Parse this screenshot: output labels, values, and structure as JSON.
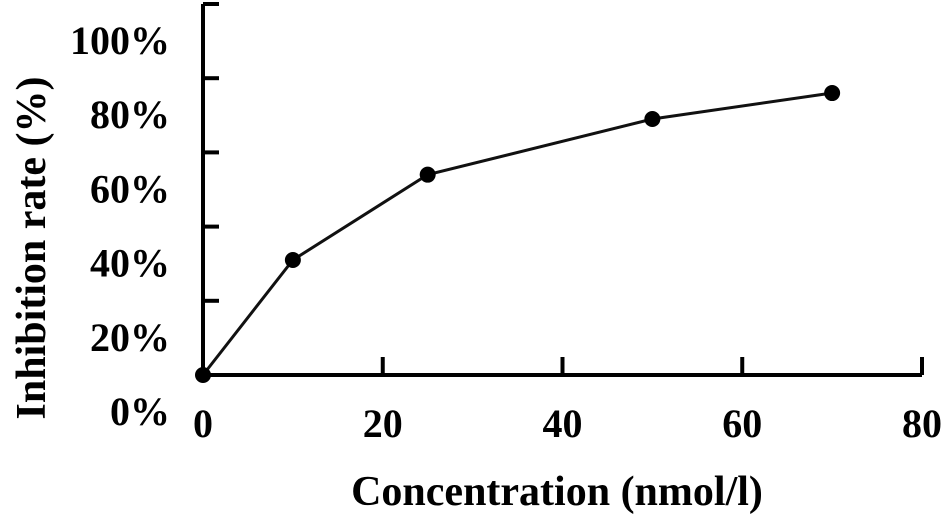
{
  "chart_data": {
    "type": "line",
    "xlabel": "Concentration (nmol/l)",
    "ylabel": "Inhibition rate (%)",
    "x_ticks": [
      "0",
      "20",
      "40",
      "60",
      "80"
    ],
    "y_ticks": [
      "0%",
      "20%",
      "40%",
      "60%",
      "80%",
      "100%"
    ],
    "xlim": [
      0,
      80
    ],
    "ylim": [
      0,
      100
    ],
    "grid": false,
    "series": [
      {
        "x": [
          0,
          10,
          25,
          50,
          70
        ],
        "y": [
          0,
          31,
          54,
          69,
          76
        ]
      }
    ]
  }
}
